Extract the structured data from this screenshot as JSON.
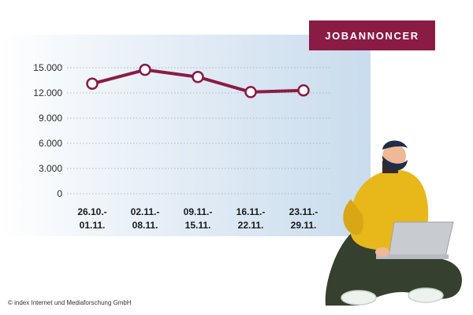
{
  "badge": {
    "label": "JOBANNONCER",
    "color": "#8a1b45"
  },
  "copyright": "© index Internet und Mediaforschung GmbH",
  "colors": {
    "line": "#8a1b45",
    "marker_fill": "#ffffff",
    "panel": "#c9dced"
  },
  "illustration": {
    "icon": "person-with-laptop-icon"
  },
  "chart_data": {
    "type": "line",
    "title": "",
    "xlabel": "",
    "ylabel": "",
    "categories": [
      [
        "26.10.-",
        "01.11."
      ],
      [
        "02.11.-",
        "08.11."
      ],
      [
        "09.11.-",
        "15.11."
      ],
      [
        "16.11.-",
        "22.11."
      ],
      [
        "23.11.-",
        "29.11."
      ]
    ],
    "values": [
      13100,
      14750,
      13900,
      12100,
      12300
    ],
    "yticks": [
      0,
      3000,
      6000,
      9000,
      12000,
      15000
    ],
    "ytick_labels": [
      "0",
      "3.000",
      "6.000",
      "9.000",
      "12.000",
      "15.000"
    ],
    "ylim": [
      0,
      15000
    ],
    "grid": true,
    "legend": "none"
  }
}
